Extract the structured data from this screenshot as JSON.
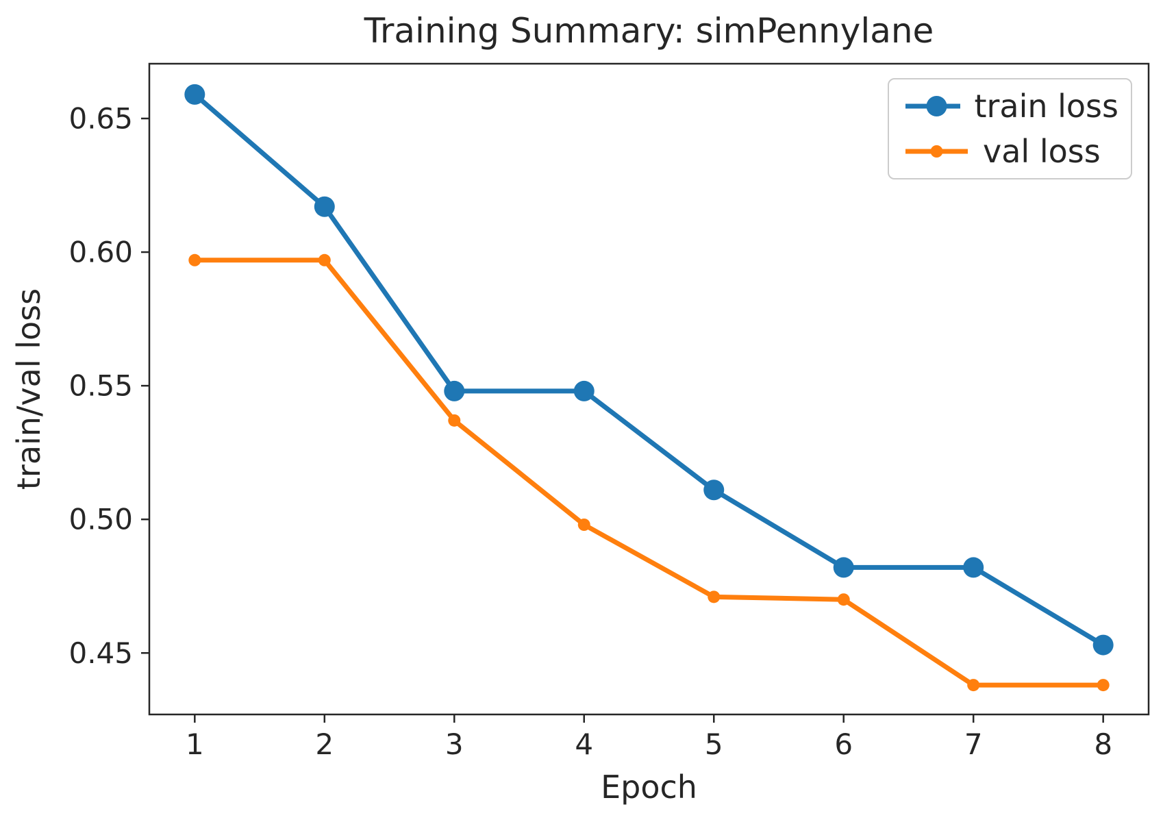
{
  "colors": {
    "train_loss": "#1f77b4",
    "val_loss": "#ff7f0e",
    "axis": "#262626",
    "text": "#262626",
    "legend_border": "#cccccc",
    "background": "#ffffff"
  },
  "chart_data": {
    "type": "line",
    "title": "Training Summary: simPennylane",
    "xlabel": "Epoch",
    "ylabel": "train/val loss",
    "x": [
      1,
      2,
      3,
      4,
      5,
      6,
      7,
      8
    ],
    "series": [
      {
        "name": "train loss",
        "color": "#1f77b4",
        "values": [
          0.659,
          0.617,
          0.548,
          0.548,
          0.511,
          0.482,
          0.482,
          0.453
        ],
        "marker": "circle",
        "marker_radius": 15,
        "line_width": 7
      },
      {
        "name": "val loss",
        "color": "#ff7f0e",
        "values": [
          0.597,
          0.597,
          0.537,
          0.498,
          0.471,
          0.47,
          0.438,
          0.438
        ],
        "marker": "circle",
        "marker_radius": 9,
        "line_width": 7
      }
    ],
    "xlim": [
      0.65,
      8.35
    ],
    "ylim": [
      0.427,
      0.6705
    ],
    "xticks": [
      1,
      2,
      3,
      4,
      5,
      6,
      7,
      8
    ],
    "xtick_labels": [
      "1",
      "2",
      "3",
      "4",
      "5",
      "6",
      "7",
      "8"
    ],
    "yticks": [
      0.45,
      0.5,
      0.55,
      0.6,
      0.65
    ],
    "ytick_labels": [
      "0.45",
      "0.50",
      "0.55",
      "0.60",
      "0.65"
    ],
    "grid": false,
    "legend_position": "upper right"
  }
}
